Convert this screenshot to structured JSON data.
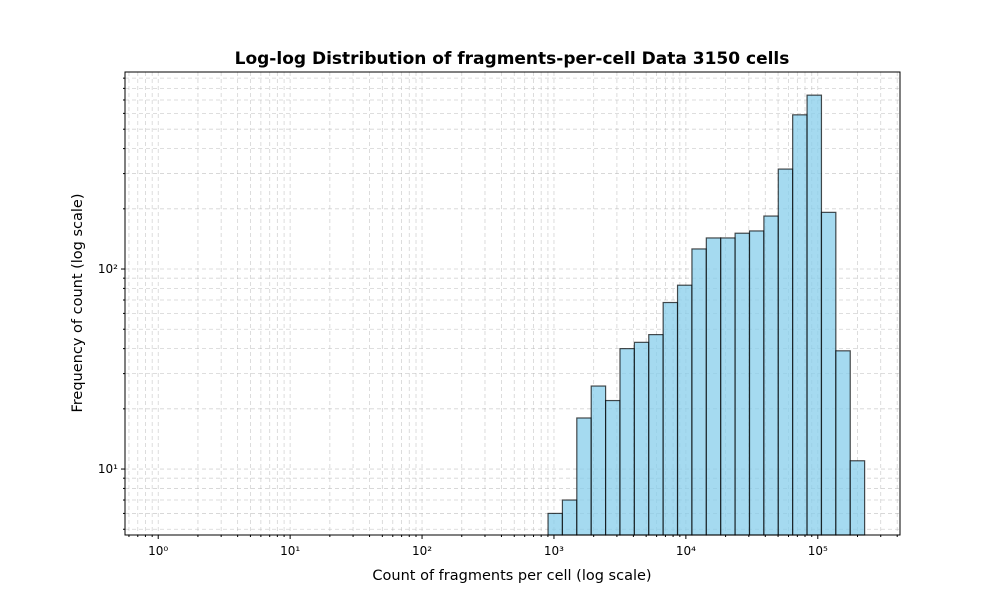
{
  "chart_data": {
    "type": "histogram",
    "title": "Log-log Distribution of fragments-per-cell Data 3150 cells",
    "x_label": "Count of fragments per cell (log scale)",
    "y_label": "Frequency of count (log scale)",
    "bins": [
      902,
      1159,
      1490,
      1916,
      2463,
      3166,
      4070,
      5232,
      6726,
      8647,
      11117,
      14290,
      18371,
      23617,
      30362,
      39032,
      50178,
      64507,
      82928,
      106610,
      137053,
      176190,
      226504
    ],
    "counts": [
      6,
      7,
      18,
      26,
      22,
      40,
      43,
      47,
      68,
      83,
      126,
      143,
      143,
      151,
      155,
      184,
      316,
      590,
      740,
      192,
      39,
      11
    ],
    "color": "#87ceeb",
    "edge_color": "#000000",
    "xscale": "log",
    "yscale": "log",
    "xlim": [
      0.56,
      420000
    ],
    "ylim": [
      4.68,
      966
    ],
    "xticks": [
      {
        "value": 1,
        "label": "10⁰"
      },
      {
        "value": 10,
        "label": "10¹"
      },
      {
        "value": 100,
        "label": "10²"
      },
      {
        "value": 1000,
        "label": "10³"
      },
      {
        "value": 10000,
        "label": "10⁴"
      },
      {
        "value": 100000,
        "label": "10⁵"
      }
    ],
    "yticks": [
      {
        "value": 10,
        "label": "10¹"
      },
      {
        "value": 100,
        "label": "10²"
      }
    ],
    "grid": true
  }
}
